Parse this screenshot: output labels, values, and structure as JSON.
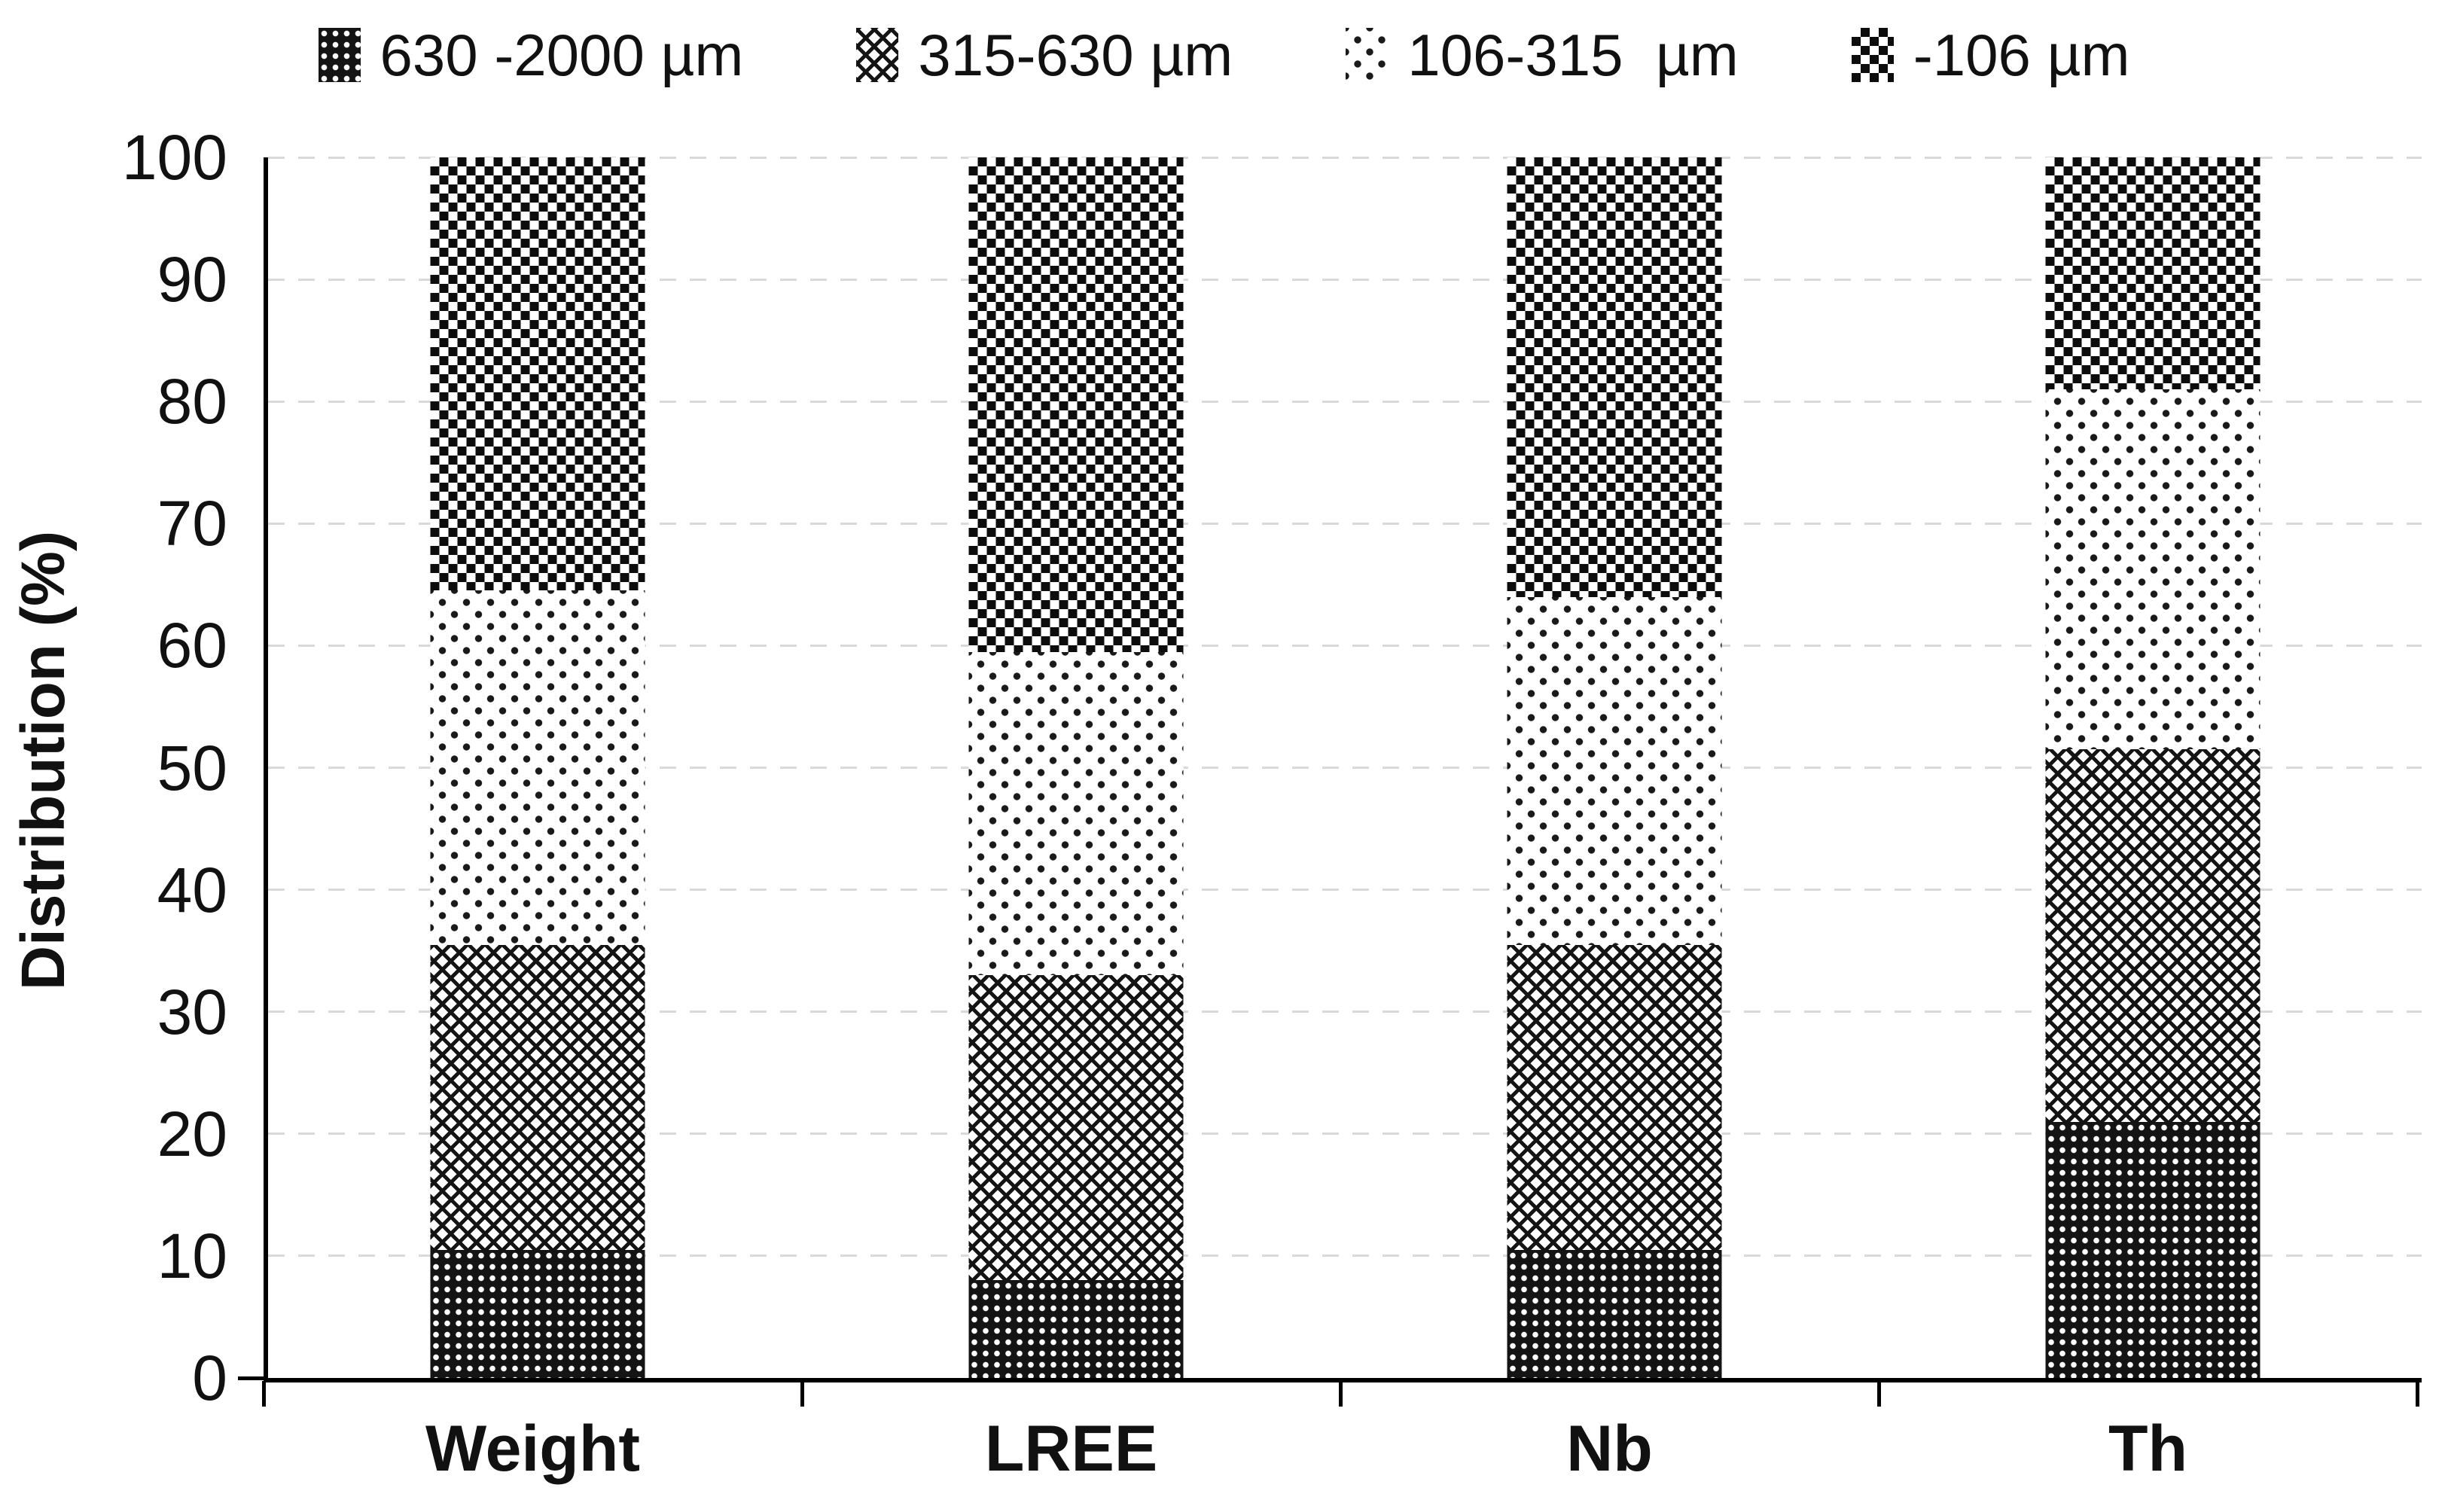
{
  "colors": {
    "ink": "#111111",
    "gridline": "#d9d9d9",
    "background": "#ffffff"
  },
  "chart_data": {
    "type": "bar",
    "stacked": true,
    "title": "",
    "xlabel": "",
    "ylabel": "Distribution (%)",
    "ylim": [
      0,
      100
    ],
    "yticks": [
      0,
      10,
      20,
      30,
      40,
      50,
      60,
      70,
      80,
      90,
      100
    ],
    "grid": "horizontal-dashed",
    "legend_position": "top",
    "categories": [
      "Weight",
      "LREE",
      "Nb",
      "Th"
    ],
    "series": [
      {
        "name": "630 -2000 µm",
        "pattern": "dark-dot-grid",
        "values": [
          10.5,
          8,
          10.5,
          21
        ]
      },
      {
        "name": "315-630 µm",
        "pattern": "zigzag",
        "values": [
          25,
          25,
          25,
          30.5
        ]
      },
      {
        "name": "106-315  µm",
        "pattern": "light-dots",
        "values": [
          29,
          26.5,
          28.5,
          29.5
        ]
      },
      {
        "name": "-106 µm",
        "pattern": "checker",
        "values": [
          35.5,
          40.5,
          36,
          19
        ]
      }
    ]
  }
}
